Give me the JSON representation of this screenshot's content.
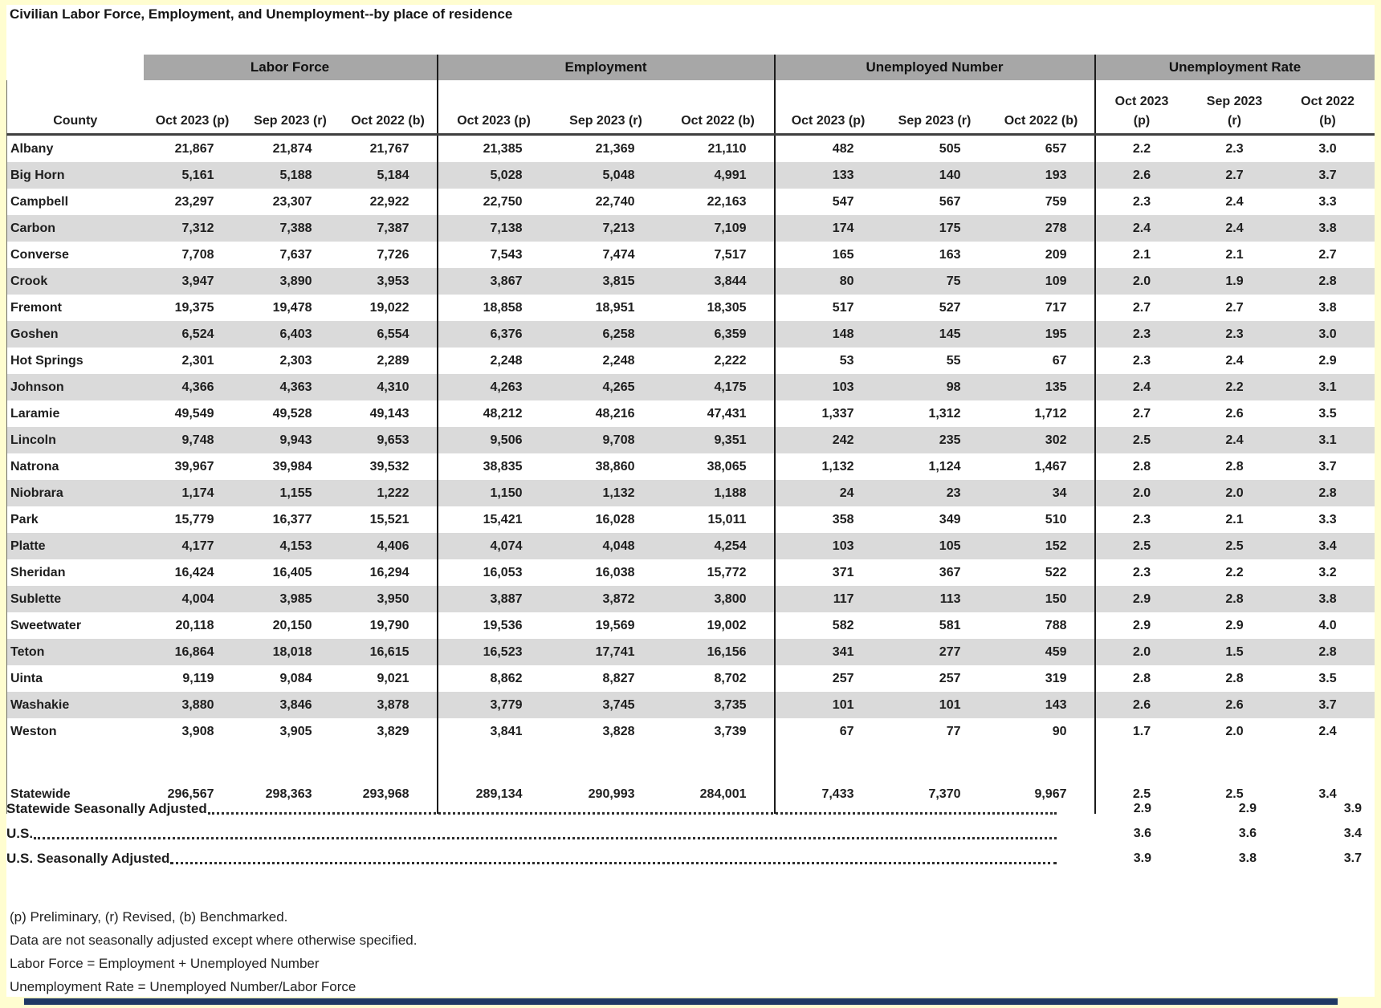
{
  "title": "Civilian Labor Force, Employment, and Unemployment--by place of residence",
  "colors": {
    "page_bg": "#FFFDD0",
    "band_gray": "#A7A7A7",
    "stripe_gray": "#DADADA",
    "text": "#1E1E1E",
    "bottom_bar_navy": "#1F3864"
  },
  "table": {
    "corner_label": "County",
    "groups": [
      {
        "label": "Labor Force",
        "columns": [
          "Oct 2023 (p)",
          "Sep 2023 (r)",
          "Oct 2022 (b)"
        ]
      },
      {
        "label": "Employment",
        "columns": [
          "Oct 2023 (p)",
          "Sep 2023 (r)",
          "Oct 2022 (b)"
        ]
      },
      {
        "label": "Unemployed Number",
        "columns": [
          "Oct 2023 (p)",
          "Sep 2023 (r)",
          "Oct 2022 (b)"
        ]
      },
      {
        "label": "Unemployment Rate",
        "columns_two_line": [
          [
            "Oct 2023",
            "(p)"
          ],
          [
            "Sep 2023",
            "(r)"
          ],
          [
            "Oct 2022",
            "(b)"
          ]
        ]
      }
    ],
    "rows": [
      {
        "county": "Albany",
        "labor_force": [
          "21,867",
          "21,874",
          "21,767"
        ],
        "employment": [
          "21,385",
          "21,369",
          "21,110"
        ],
        "unemployed": [
          "482",
          "505",
          "657"
        ],
        "rate": [
          "2.2",
          "2.3",
          "3.0"
        ]
      },
      {
        "county": "Big Horn",
        "labor_force": [
          "5,161",
          "5,188",
          "5,184"
        ],
        "employment": [
          "5,028",
          "5,048",
          "4,991"
        ],
        "unemployed": [
          "133",
          "140",
          "193"
        ],
        "rate": [
          "2.6",
          "2.7",
          "3.7"
        ]
      },
      {
        "county": "Campbell",
        "labor_force": [
          "23,297",
          "23,307",
          "22,922"
        ],
        "employment": [
          "22,750",
          "22,740",
          "22,163"
        ],
        "unemployed": [
          "547",
          "567",
          "759"
        ],
        "rate": [
          "2.3",
          "2.4",
          "3.3"
        ]
      },
      {
        "county": "Carbon",
        "labor_force": [
          "7,312",
          "7,388",
          "7,387"
        ],
        "employment": [
          "7,138",
          "7,213",
          "7,109"
        ],
        "unemployed": [
          "174",
          "175",
          "278"
        ],
        "rate": [
          "2.4",
          "2.4",
          "3.8"
        ]
      },
      {
        "county": "Converse",
        "labor_force": [
          "7,708",
          "7,637",
          "7,726"
        ],
        "employment": [
          "7,543",
          "7,474",
          "7,517"
        ],
        "unemployed": [
          "165",
          "163",
          "209"
        ],
        "rate": [
          "2.1",
          "2.1",
          "2.7"
        ]
      },
      {
        "county": "Crook",
        "labor_force": [
          "3,947",
          "3,890",
          "3,953"
        ],
        "employment": [
          "3,867",
          "3,815",
          "3,844"
        ],
        "unemployed": [
          "80",
          "75",
          "109"
        ],
        "rate": [
          "2.0",
          "1.9",
          "2.8"
        ]
      },
      {
        "county": "Fremont",
        "labor_force": [
          "19,375",
          "19,478",
          "19,022"
        ],
        "employment": [
          "18,858",
          "18,951",
          "18,305"
        ],
        "unemployed": [
          "517",
          "527",
          "717"
        ],
        "rate": [
          "2.7",
          "2.7",
          "3.8"
        ]
      },
      {
        "county": "Goshen",
        "labor_force": [
          "6,524",
          "6,403",
          "6,554"
        ],
        "employment": [
          "6,376",
          "6,258",
          "6,359"
        ],
        "unemployed": [
          "148",
          "145",
          "195"
        ],
        "rate": [
          "2.3",
          "2.3",
          "3.0"
        ]
      },
      {
        "county": "Hot Springs",
        "labor_force": [
          "2,301",
          "2,303",
          "2,289"
        ],
        "employment": [
          "2,248",
          "2,248",
          "2,222"
        ],
        "unemployed": [
          "53",
          "55",
          "67"
        ],
        "rate": [
          "2.3",
          "2.4",
          "2.9"
        ]
      },
      {
        "county": "Johnson",
        "labor_force": [
          "4,366",
          "4,363",
          "4,310"
        ],
        "employment": [
          "4,263",
          "4,265",
          "4,175"
        ],
        "unemployed": [
          "103",
          "98",
          "135"
        ],
        "rate": [
          "2.4",
          "2.2",
          "3.1"
        ]
      },
      {
        "county": "Laramie",
        "labor_force": [
          "49,549",
          "49,528",
          "49,143"
        ],
        "employment": [
          "48,212",
          "48,216",
          "47,431"
        ],
        "unemployed": [
          "1,337",
          "1,312",
          "1,712"
        ],
        "rate": [
          "2.7",
          "2.6",
          "3.5"
        ]
      },
      {
        "county": "Lincoln",
        "labor_force": [
          "9,748",
          "9,943",
          "9,653"
        ],
        "employment": [
          "9,506",
          "9,708",
          "9,351"
        ],
        "unemployed": [
          "242",
          "235",
          "302"
        ],
        "rate": [
          "2.5",
          "2.4",
          "3.1"
        ]
      },
      {
        "county": "Natrona",
        "labor_force": [
          "39,967",
          "39,984",
          "39,532"
        ],
        "employment": [
          "38,835",
          "38,860",
          "38,065"
        ],
        "unemployed": [
          "1,132",
          "1,124",
          "1,467"
        ],
        "rate": [
          "2.8",
          "2.8",
          "3.7"
        ]
      },
      {
        "county": "Niobrara",
        "labor_force": [
          "1,174",
          "1,155",
          "1,222"
        ],
        "employment": [
          "1,150",
          "1,132",
          "1,188"
        ],
        "unemployed": [
          "24",
          "23",
          "34"
        ],
        "rate": [
          "2.0",
          "2.0",
          "2.8"
        ]
      },
      {
        "county": "Park",
        "labor_force": [
          "15,779",
          "16,377",
          "15,521"
        ],
        "employment": [
          "15,421",
          "16,028",
          "15,011"
        ],
        "unemployed": [
          "358",
          "349",
          "510"
        ],
        "rate": [
          "2.3",
          "2.1",
          "3.3"
        ]
      },
      {
        "county": "Platte",
        "labor_force": [
          "4,177",
          "4,153",
          "4,406"
        ],
        "employment": [
          "4,074",
          "4,048",
          "4,254"
        ],
        "unemployed": [
          "103",
          "105",
          "152"
        ],
        "rate": [
          "2.5",
          "2.5",
          "3.4"
        ]
      },
      {
        "county": "Sheridan",
        "labor_force": [
          "16,424",
          "16,405",
          "16,294"
        ],
        "employment": [
          "16,053",
          "16,038",
          "15,772"
        ],
        "unemployed": [
          "371",
          "367",
          "522"
        ],
        "rate": [
          "2.3",
          "2.2",
          "3.2"
        ]
      },
      {
        "county": "Sublette",
        "labor_force": [
          "4,004",
          "3,985",
          "3,950"
        ],
        "employment": [
          "3,887",
          "3,872",
          "3,800"
        ],
        "unemployed": [
          "117",
          "113",
          "150"
        ],
        "rate": [
          "2.9",
          "2.8",
          "3.8"
        ]
      },
      {
        "county": "Sweetwater",
        "labor_force": [
          "20,118",
          "20,150",
          "19,790"
        ],
        "employment": [
          "19,536",
          "19,569",
          "19,002"
        ],
        "unemployed": [
          "582",
          "581",
          "788"
        ],
        "rate": [
          "2.9",
          "2.9",
          "4.0"
        ]
      },
      {
        "county": "Teton",
        "labor_force": [
          "16,864",
          "18,018",
          "16,615"
        ],
        "employment": [
          "16,523",
          "17,741",
          "16,156"
        ],
        "unemployed": [
          "341",
          "277",
          "459"
        ],
        "rate": [
          "2.0",
          "1.5",
          "2.8"
        ]
      },
      {
        "county": "Uinta",
        "labor_force": [
          "9,119",
          "9,084",
          "9,021"
        ],
        "employment": [
          "8,862",
          "8,827",
          "8,702"
        ],
        "unemployed": [
          "257",
          "257",
          "319"
        ],
        "rate": [
          "2.8",
          "2.8",
          "3.5"
        ]
      },
      {
        "county": "Washakie",
        "labor_force": [
          "3,880",
          "3,846",
          "3,878"
        ],
        "employment": [
          "3,779",
          "3,745",
          "3,735"
        ],
        "unemployed": [
          "101",
          "101",
          "143"
        ],
        "rate": [
          "2.6",
          "2.6",
          "3.7"
        ]
      },
      {
        "county": "Weston",
        "labor_force": [
          "3,908",
          "3,905",
          "3,829"
        ],
        "employment": [
          "3,841",
          "3,828",
          "3,739"
        ],
        "unemployed": [
          "67",
          "77",
          "90"
        ],
        "rate": [
          "1.7",
          "2.0",
          "2.4"
        ]
      }
    ],
    "statewide": {
      "county": "Statewide",
      "labor_force": [
        "296,567",
        "298,363",
        "293,968"
      ],
      "employment": [
        "289,134",
        "290,993",
        "284,001"
      ],
      "unemployed": [
        "7,433",
        "7,370",
        "9,967"
      ],
      "rate": [
        "2.5",
        "2.5",
        "3.4"
      ]
    },
    "summary_rows": [
      {
        "label": "Statewide Seasonally Adjusted",
        "rates": [
          "2.9",
          "2.9",
          "3.9"
        ]
      },
      {
        "label": "U.S.",
        "rates": [
          "3.6",
          "3.6",
          "3.4"
        ]
      },
      {
        "label": "U.S. Seasonally Adjusted",
        "rates": [
          "3.9",
          "3.8",
          "3.7"
        ]
      }
    ],
    "footnotes": [
      "(p) Preliminary, (r) Revised, (b) Benchmarked.",
      "Data are not seasonally adjusted except where otherwise specified.",
      "Labor Force = Employment + Unemployed Number",
      "Unemployment Rate = Unemployed Number/Labor Force"
    ]
  }
}
